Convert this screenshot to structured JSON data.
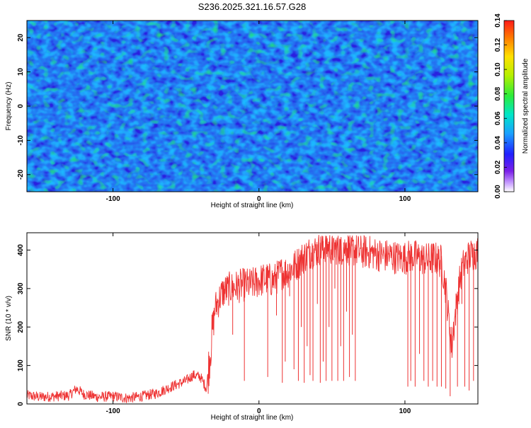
{
  "title": "S236.2025.321.16.57.G28",
  "chart_data": [
    {
      "type": "heatmap",
      "xlabel": "Height of straight line (km)",
      "ylabel": "Frequency (Hz)",
      "xlim": [
        -159,
        150
      ],
      "ylim": [
        -25,
        25
      ],
      "xticks": [
        -100,
        0,
        100
      ],
      "yticks": [
        -20,
        -10,
        0,
        10,
        20
      ],
      "colorbar": {
        "label": "Normalized spectral amplitude",
        "range": [
          0.0,
          0.14
        ],
        "ticks": [
          "0.00",
          "0.02",
          "0.04",
          "0.06",
          "0.08",
          "0.10",
          "0.12",
          "0.14"
        ]
      },
      "description_values": {
        "typical_amplitude": 0.03,
        "peak_amplitude": 0.1
      }
    },
    {
      "type": "line",
      "xlabel": "Height of straight line (km)",
      "ylabel": "SNR (10 * v/v)",
      "xlim": [
        -159,
        150
      ],
      "ylim": [
        0,
        445
      ],
      "xticks": [
        -100,
        0,
        100
      ],
      "yticks": [
        0,
        100,
        200,
        300,
        400
      ],
      "color": "#ee3333",
      "series": [
        {
          "name": "SNR",
          "x": [
            -159,
            -150,
            -140,
            -130,
            -125,
            -120,
            -110,
            -100,
            -90,
            -80,
            -70,
            -60,
            -50,
            -45,
            -40,
            -36,
            -33,
            -30,
            -25,
            -20,
            -15,
            -10,
            -5,
            0,
            5,
            10,
            15,
            20,
            25,
            30,
            35,
            40,
            45,
            50,
            55,
            60,
            65,
            70,
            75,
            80,
            85,
            90,
            95,
            100,
            105,
            110,
            115,
            120,
            125,
            128,
            130,
            132,
            135,
            138,
            140,
            143,
            146,
            150
          ],
          "y": [
            22,
            18,
            20,
            22,
            40,
            25,
            18,
            20,
            15,
            20,
            28,
            45,
            60,
            75,
            70,
            40,
            150,
            250,
            290,
            300,
            305,
            310,
            310,
            320,
            325,
            320,
            340,
            345,
            360,
            380,
            395,
            400,
            410,
            405,
            405,
            405,
            400,
            395,
            395,
            390,
            385,
            385,
            380,
            380,
            385,
            380,
            375,
            380,
            370,
            300,
            220,
            150,
            250,
            330,
            360,
            380,
            390,
            395
          ]
        }
      ],
      "dropouts": [
        {
          "x": -24,
          "y": 270
        },
        {
          "x": -18,
          "y": 180
        },
        {
          "x": -10,
          "y": 60
        },
        {
          "x": 6,
          "y": 70
        },
        {
          "x": 12,
          "y": 230
        },
        {
          "x": 16,
          "y": 55
        },
        {
          "x": 18,
          "y": 110
        },
        {
          "x": 21,
          "y": 280
        },
        {
          "x": 24,
          "y": 90
        },
        {
          "x": 27,
          "y": 60
        },
        {
          "x": 29,
          "y": 200
        },
        {
          "x": 31,
          "y": 55
        },
        {
          "x": 33,
          "y": 150
        },
        {
          "x": 35,
          "y": 75
        },
        {
          "x": 37,
          "y": 60
        },
        {
          "x": 40,
          "y": 260
        },
        {
          "x": 42,
          "y": 55
        },
        {
          "x": 44,
          "y": 110
        },
        {
          "x": 46,
          "y": 60
        },
        {
          "x": 48,
          "y": 200
        },
        {
          "x": 50,
          "y": 60
        },
        {
          "x": 52,
          "y": 300
        },
        {
          "x": 54,
          "y": 60
        },
        {
          "x": 56,
          "y": 150
        },
        {
          "x": 58,
          "y": 60
        },
        {
          "x": 60,
          "y": 240
        },
        {
          "x": 62,
          "y": 70
        },
        {
          "x": 64,
          "y": 180
        },
        {
          "x": 66,
          "y": 60
        },
        {
          "x": 102,
          "y": 45
        },
        {
          "x": 104,
          "y": 60
        },
        {
          "x": 107,
          "y": 45
        },
        {
          "x": 110,
          "y": 130
        },
        {
          "x": 113,
          "y": 60
        },
        {
          "x": 116,
          "y": 45
        },
        {
          "x": 119,
          "y": 60
        },
        {
          "x": 122,
          "y": 45
        },
        {
          "x": 125,
          "y": 45
        },
        {
          "x": 128,
          "y": 40
        },
        {
          "x": 131,
          "y": 20
        },
        {
          "x": 133,
          "y": 180
        },
        {
          "x": 136,
          "y": 45
        },
        {
          "x": 139,
          "y": 260
        },
        {
          "x": 141,
          "y": 45
        },
        {
          "x": 144,
          "y": 35
        },
        {
          "x": 147,
          "y": 60
        }
      ]
    }
  ]
}
